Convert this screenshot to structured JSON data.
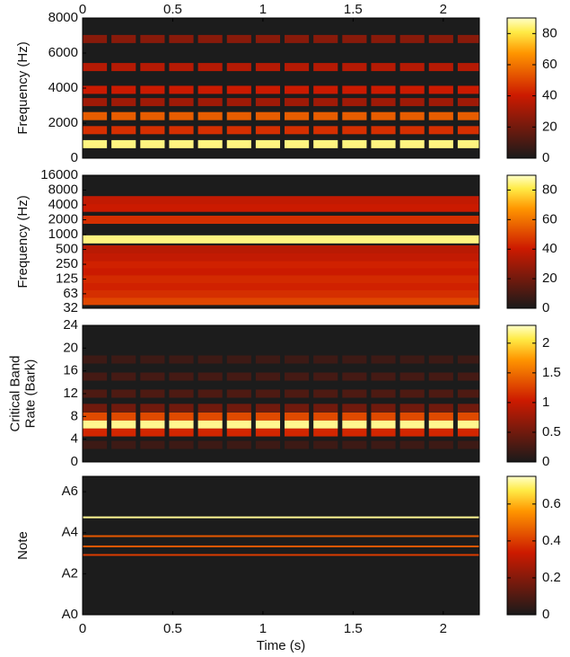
{
  "chart_data": [
    {
      "type": "heatmap",
      "ylabel": [
        "Frequency (Hz)"
      ],
      "xaxis": "top",
      "colormap": "hot",
      "xlim": [
        0,
        2.2
      ],
      "xticks": [
        0,
        0.5,
        1,
        1.5,
        2
      ],
      "ylim": [
        0,
        8000
      ],
      "yticks": [
        0,
        2000,
        4000,
        6000,
        8000
      ],
      "clim": [
        0,
        90
      ],
      "cticks": [
        0,
        20,
        40,
        60,
        80
      ],
      "onsets": [
        0,
        0.16,
        0.32,
        0.48,
        0.64,
        0.8,
        0.96,
        1.12,
        1.28,
        1.44,
        1.6,
        1.76,
        1.92,
        2.08
      ],
      "bands": [
        {
          "y": 800,
          "value": 85
        },
        {
          "y": 1600,
          "value": 45
        },
        {
          "y": 2400,
          "value": 55
        },
        {
          "y": 3200,
          "value": 30
        },
        {
          "y": 3900,
          "value": 40
        },
        {
          "y": 5200,
          "value": 35
        },
        {
          "y": 6800,
          "value": 25
        }
      ]
    },
    {
      "type": "heatmap",
      "ylabel": [
        "Frequency (Hz)"
      ],
      "colormap": "hot",
      "log_y": true,
      "xlim": [
        0,
        2.2
      ],
      "ylim": [
        32,
        16000
      ],
      "yticks": [
        32,
        63,
        125,
        250,
        500,
        1000,
        2000,
        4000,
        8000,
        16000
      ],
      "clim": [
        0,
        90
      ],
      "cticks": [
        0,
        20,
        40,
        60,
        80
      ],
      "bands": [
        {
          "y": 45,
          "value": 50
        },
        {
          "y": 63,
          "value": 45
        },
        {
          "y": 90,
          "value": 42
        },
        {
          "y": 125,
          "value": 44
        },
        {
          "y": 180,
          "value": 40
        },
        {
          "y": 250,
          "value": 42
        },
        {
          "y": 350,
          "value": 38
        },
        {
          "y": 500,
          "value": 36
        },
        {
          "y": 800,
          "value": 85
        },
        {
          "y": 2000,
          "value": 45
        },
        {
          "y": 3500,
          "value": 40
        },
        {
          "y": 5000,
          "value": 38
        }
      ]
    },
    {
      "type": "heatmap",
      "ylabel": [
        "Critical Band",
        "Rate (Bark)"
      ],
      "colormap": "hot",
      "xlim": [
        0,
        2.2
      ],
      "ylim": [
        0,
        24
      ],
      "yticks": [
        0,
        4,
        8,
        12,
        16,
        20,
        24
      ],
      "clim": [
        0,
        2.3
      ],
      "cticks": [
        0,
        0.5,
        1,
        1.5,
        2
      ],
      "onsets": [
        0,
        0.16,
        0.32,
        0.48,
        0.64,
        0.8,
        0.96,
        1.12,
        1.28,
        1.44,
        1.6,
        1.76,
        1.92,
        2.08
      ],
      "bands": [
        {
          "y": 3,
          "value": 0.2
        },
        {
          "y": 5.2,
          "value": 1.1
        },
        {
          "y": 6.6,
          "value": 2.2
        },
        {
          "y": 8,
          "value": 1.3
        },
        {
          "y": 9.5,
          "value": 0.5
        },
        {
          "y": 12,
          "value": 0.3
        },
        {
          "y": 15,
          "value": 0.25
        },
        {
          "y": 18,
          "value": 0.2
        }
      ]
    },
    {
      "type": "heatmap",
      "ylabel": [
        "Note"
      ],
      "xlabel": "Time (s)",
      "xaxis": "bottom",
      "colormap": "hot",
      "thin": true,
      "xlim": [
        0,
        2.2
      ],
      "xticks": [
        0,
        0.5,
        1,
        1.5,
        2
      ],
      "ylim": [
        21,
        102
      ],
      "yticks": [
        {
          "value": 21,
          "label": "A0"
        },
        {
          "value": 45,
          "label": "A2"
        },
        {
          "value": 69,
          "label": "A4"
        },
        {
          "value": 93,
          "label": "A6"
        }
      ],
      "clim": [
        0,
        0.75
      ],
      "cticks": [
        0,
        0.2,
        0.4,
        0.6
      ],
      "bands": [
        {
          "y": 78,
          "value": 0.72
        },
        {
          "y": 67,
          "value": 0.45
        },
        {
          "y": 61,
          "value": 0.45
        },
        {
          "y": 56,
          "value": 0.4
        }
      ]
    }
  ]
}
